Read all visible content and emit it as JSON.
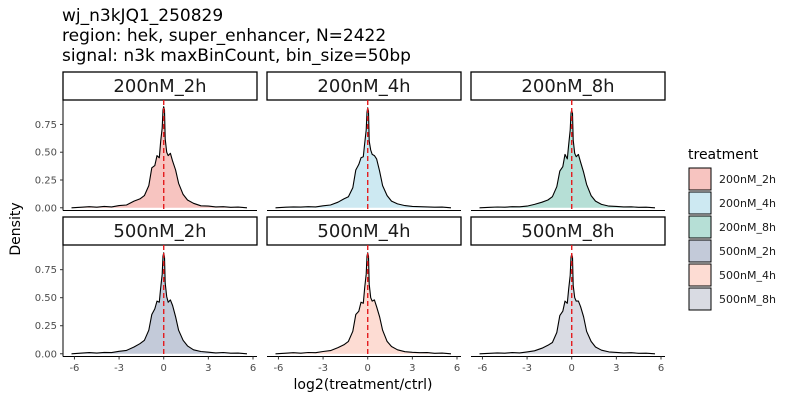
{
  "chart_data": {
    "type": "area",
    "title_lines": [
      "wj_n3kJQ1_250829",
      "region: hek, super_enhancer, N=2422",
      "signal: n3k maxBinCount, bin_size=50bp"
    ],
    "xlabel": "log2(treatment/ctrl)",
    "ylabel": "Density",
    "xlim": [
      -6.5,
      6.0
    ],
    "ylim": [
      -0.02,
      0.97
    ],
    "x_ticks": [
      -6,
      -3,
      0,
      3,
      6
    ],
    "y_ticks": [
      0.0,
      0.25,
      0.5,
      0.75
    ],
    "y_tick_labels": [
      "0.00",
      "0.25",
      "0.50",
      "0.75"
    ],
    "vline_x": 0,
    "vline_color": "#e41a1c",
    "legend": {
      "title": "treatment",
      "position": "right",
      "items": [
        {
          "label": "200nM_2h",
          "color": "#f7c4c0"
        },
        {
          "label": "200nM_4h",
          "color": "#cde9f2"
        },
        {
          "label": "200nM_8h",
          "color": "#b6dfd6"
        },
        {
          "label": "500nM_2h",
          "color": "#c3cad9"
        },
        {
          "label": "500nM_4h",
          "color": "#fddcd3"
        },
        {
          "label": "500nM_8h",
          "color": "#d9dbe3"
        }
      ]
    },
    "density_x": [
      -6.2,
      -5.5,
      -5.0,
      -4.5,
      -4.0,
      -3.5,
      -3.0,
      -2.5,
      -2.0,
      -1.6,
      -1.3,
      -1.0,
      -0.8,
      -0.6,
      -0.45,
      -0.3,
      -0.2,
      -0.1,
      -0.05,
      0.0,
      0.05,
      0.1,
      0.2,
      0.3,
      0.45,
      0.6,
      0.8,
      1.0,
      1.3,
      1.6,
      2.0,
      2.5,
      3.0,
      3.5,
      4.0,
      4.5,
      5.0,
      5.6
    ],
    "panels": [
      {
        "label": "200nM_2h",
        "color": "#f7c4c0",
        "values": [
          0.0,
          0.005,
          0.01,
          0.005,
          0.012,
          0.008,
          0.02,
          0.025,
          0.06,
          0.08,
          0.11,
          0.2,
          0.36,
          0.38,
          0.47,
          0.45,
          0.6,
          0.72,
          0.88,
          0.91,
          0.88,
          0.62,
          0.5,
          0.47,
          0.49,
          0.42,
          0.34,
          0.22,
          0.12,
          0.07,
          0.04,
          0.018,
          0.015,
          0.008,
          0.01,
          0.004,
          0.006,
          0.0
        ]
      },
      {
        "label": "200nM_4h",
        "color": "#cde9f2",
        "values": [
          0.0,
          0.005,
          0.008,
          0.006,
          0.01,
          0.008,
          0.018,
          0.025,
          0.05,
          0.08,
          0.1,
          0.18,
          0.34,
          0.39,
          0.45,
          0.46,
          0.58,
          0.7,
          0.86,
          0.9,
          0.87,
          0.6,
          0.52,
          0.48,
          0.47,
          0.44,
          0.33,
          0.2,
          0.11,
          0.06,
          0.035,
          0.02,
          0.012,
          0.01,
          0.008,
          0.005,
          0.006,
          0.0
        ]
      },
      {
        "label": "200nM_8h",
        "color": "#b6dfd6",
        "values": [
          0.0,
          0.004,
          0.007,
          0.005,
          0.01,
          0.009,
          0.015,
          0.03,
          0.05,
          0.07,
          0.1,
          0.19,
          0.33,
          0.37,
          0.48,
          0.44,
          0.57,
          0.7,
          0.85,
          0.88,
          0.85,
          0.61,
          0.49,
          0.46,
          0.48,
          0.41,
          0.32,
          0.21,
          0.11,
          0.06,
          0.03,
          0.015,
          0.012,
          0.008,
          0.009,
          0.004,
          0.005,
          0.0
        ]
      },
      {
        "label": "500nM_2h",
        "color": "#c3cad9",
        "values": [
          0.0,
          0.006,
          0.01,
          0.006,
          0.012,
          0.01,
          0.022,
          0.03,
          0.06,
          0.09,
          0.12,
          0.21,
          0.35,
          0.4,
          0.47,
          0.46,
          0.59,
          0.71,
          0.87,
          0.9,
          0.86,
          0.63,
          0.51,
          0.46,
          0.48,
          0.43,
          0.33,
          0.21,
          0.12,
          0.07,
          0.035,
          0.02,
          0.014,
          0.008,
          0.011,
          0.005,
          0.006,
          0.0
        ]
      },
      {
        "label": "500nM_4h",
        "color": "#fddcd3",
        "values": [
          0.0,
          0.005,
          0.009,
          0.005,
          0.011,
          0.009,
          0.02,
          0.028,
          0.055,
          0.08,
          0.11,
          0.2,
          0.35,
          0.38,
          0.46,
          0.45,
          0.59,
          0.71,
          0.87,
          0.9,
          0.87,
          0.62,
          0.5,
          0.47,
          0.48,
          0.42,
          0.33,
          0.21,
          0.11,
          0.065,
          0.035,
          0.018,
          0.013,
          0.009,
          0.01,
          0.004,
          0.006,
          0.0
        ]
      },
      {
        "label": "500nM_8h",
        "color": "#d9dbe3",
        "values": [
          0.0,
          0.004,
          0.008,
          0.005,
          0.01,
          0.008,
          0.017,
          0.026,
          0.05,
          0.075,
          0.1,
          0.19,
          0.34,
          0.38,
          0.47,
          0.45,
          0.58,
          0.7,
          0.86,
          0.89,
          0.86,
          0.61,
          0.5,
          0.47,
          0.47,
          0.42,
          0.33,
          0.2,
          0.11,
          0.06,
          0.032,
          0.017,
          0.012,
          0.008,
          0.009,
          0.004,
          0.005,
          0.0
        ]
      }
    ]
  }
}
